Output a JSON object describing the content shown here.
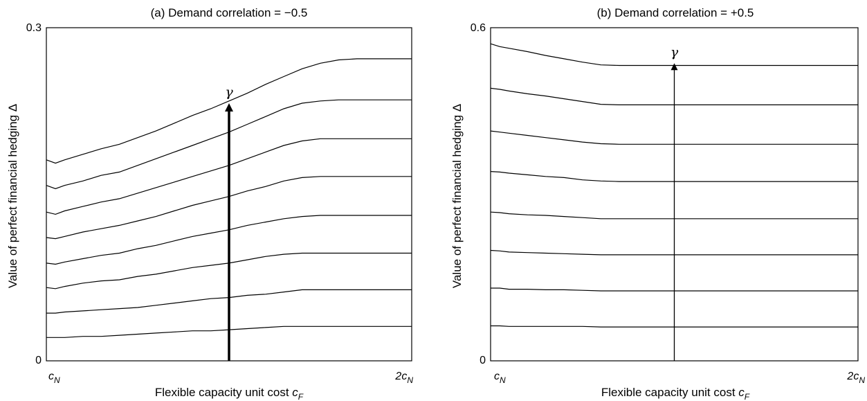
{
  "chart_data": [
    {
      "type": "line",
      "title": "(a) Demand correlation = −0.5",
      "ylabel": "Value of perfect financial hedging Δ",
      "xlabel_text": "Flexible capacity unit cost ",
      "xlabel_var": "c",
      "xlabel_sub": "F",
      "x_tick_left": {
        "text": "c",
        "sub": "N"
      },
      "x_tick_right": {
        "text": "2c",
        "sub": "N"
      },
      "y_tick_top": "0.3",
      "y_tick_bottom": "0",
      "ylim": [
        0,
        0.3
      ],
      "xlim": [
        1,
        2
      ],
      "arrow_label": "γ",
      "arrow": {
        "x": 1.5,
        "y_from": 0,
        "y_to": 0.232,
        "bold": true
      },
      "x": [
        1.0,
        1.025,
        1.05,
        1.1,
        1.15,
        1.2,
        1.25,
        1.3,
        1.35,
        1.4,
        1.45,
        1.5,
        1.55,
        1.6,
        1.65,
        1.7,
        1.75,
        1.8,
        1.85,
        1.9,
        1.95,
        2.0
      ],
      "series": [
        {
          "values": [
            0.021,
            0.021,
            0.021,
            0.022,
            0.022,
            0.023,
            0.024,
            0.025,
            0.026,
            0.027,
            0.027,
            0.028,
            0.029,
            0.03,
            0.031,
            0.031,
            0.031,
            0.031,
            0.031,
            0.031,
            0.031,
            0.031
          ]
        },
        {
          "values": [
            0.043,
            0.043,
            0.044,
            0.045,
            0.046,
            0.047,
            0.048,
            0.05,
            0.052,
            0.054,
            0.056,
            0.057,
            0.059,
            0.06,
            0.062,
            0.064,
            0.064,
            0.064,
            0.064,
            0.064,
            0.064,
            0.064
          ]
        },
        {
          "values": [
            0.066,
            0.065,
            0.067,
            0.07,
            0.072,
            0.073,
            0.076,
            0.078,
            0.081,
            0.084,
            0.086,
            0.088,
            0.091,
            0.094,
            0.096,
            0.097,
            0.097,
            0.097,
            0.097,
            0.097,
            0.097,
            0.097
          ]
        },
        {
          "values": [
            0.088,
            0.087,
            0.089,
            0.092,
            0.095,
            0.097,
            0.101,
            0.104,
            0.108,
            0.112,
            0.115,
            0.118,
            0.122,
            0.125,
            0.128,
            0.13,
            0.131,
            0.131,
            0.131,
            0.131,
            0.131,
            0.131
          ]
        },
        {
          "values": [
            0.111,
            0.11,
            0.112,
            0.116,
            0.119,
            0.122,
            0.126,
            0.13,
            0.135,
            0.14,
            0.144,
            0.148,
            0.153,
            0.157,
            0.162,
            0.165,
            0.166,
            0.166,
            0.166,
            0.166,
            0.166,
            0.166
          ]
        },
        {
          "values": [
            0.134,
            0.132,
            0.135,
            0.139,
            0.143,
            0.146,
            0.151,
            0.156,
            0.161,
            0.166,
            0.171,
            0.176,
            0.182,
            0.188,
            0.194,
            0.198,
            0.2,
            0.2,
            0.2,
            0.2,
            0.2,
            0.2
          ]
        },
        {
          "values": [
            0.158,
            0.155,
            0.158,
            0.162,
            0.167,
            0.17,
            0.176,
            0.182,
            0.188,
            0.194,
            0.2,
            0.206,
            0.213,
            0.22,
            0.227,
            0.232,
            0.234,
            0.235,
            0.235,
            0.235,
            0.235,
            0.235
          ]
        },
        {
          "values": [
            0.181,
            0.178,
            0.181,
            0.186,
            0.191,
            0.195,
            0.201,
            0.207,
            0.214,
            0.221,
            0.227,
            0.234,
            0.241,
            0.249,
            0.256,
            0.263,
            0.268,
            0.271,
            0.272,
            0.272,
            0.272,
            0.272
          ]
        }
      ]
    },
    {
      "type": "line",
      "title": "(b) Demand correlation = +0.5",
      "ylabel": "Value of perfect financial hedging Δ",
      "xlabel_text": "Flexible capacity unit cost ",
      "xlabel_var": "c",
      "xlabel_sub": "F",
      "x_tick_left": {
        "text": "c",
        "sub": "N"
      },
      "x_tick_right": {
        "text": "2c",
        "sub": "N"
      },
      "y_tick_top": "0.6",
      "y_tick_bottom": "0",
      "ylim": [
        0,
        0.6
      ],
      "xlim": [
        1,
        2
      ],
      "arrow_label": "γ",
      "arrow": {
        "x": 1.5,
        "y_from": 0,
        "y_to": 0.536,
        "bold": false
      },
      "x": [
        1.0,
        1.025,
        1.05,
        1.1,
        1.15,
        1.2,
        1.25,
        1.3,
        1.35,
        1.4,
        1.45,
        1.5,
        1.55,
        1.6,
        1.65,
        1.7,
        1.75,
        1.8,
        1.85,
        1.9,
        1.95,
        2.0
      ],
      "series": [
        {
          "values": [
            0.063,
            0.063,
            0.062,
            0.062,
            0.062,
            0.062,
            0.062,
            0.061,
            0.061,
            0.061,
            0.061,
            0.061,
            0.061,
            0.061,
            0.061,
            0.061,
            0.061,
            0.061,
            0.061,
            0.061,
            0.061,
            0.061
          ]
        },
        {
          "values": [
            0.131,
            0.131,
            0.129,
            0.129,
            0.128,
            0.128,
            0.127,
            0.126,
            0.126,
            0.126,
            0.126,
            0.126,
            0.126,
            0.126,
            0.126,
            0.126,
            0.126,
            0.126,
            0.126,
            0.126,
            0.126,
            0.126
          ]
        },
        {
          "values": [
            0.199,
            0.198,
            0.196,
            0.195,
            0.194,
            0.193,
            0.192,
            0.191,
            0.191,
            0.191,
            0.191,
            0.191,
            0.191,
            0.191,
            0.191,
            0.191,
            0.191,
            0.191,
            0.191,
            0.191,
            0.191,
            0.191
          ]
        },
        {
          "values": [
            0.268,
            0.267,
            0.265,
            0.263,
            0.262,
            0.26,
            0.258,
            0.256,
            0.256,
            0.256,
            0.256,
            0.256,
            0.256,
            0.256,
            0.256,
            0.256,
            0.256,
            0.256,
            0.256,
            0.256,
            0.256,
            0.256
          ]
        },
        {
          "values": [
            0.341,
            0.34,
            0.338,
            0.335,
            0.332,
            0.33,
            0.326,
            0.324,
            0.323,
            0.323,
            0.323,
            0.323,
            0.323,
            0.323,
            0.323,
            0.323,
            0.323,
            0.323,
            0.323,
            0.323,
            0.323,
            0.323
          ]
        },
        {
          "values": [
            0.414,
            0.412,
            0.41,
            0.406,
            0.402,
            0.398,
            0.394,
            0.391,
            0.39,
            0.39,
            0.39,
            0.39,
            0.39,
            0.39,
            0.39,
            0.39,
            0.39,
            0.39,
            0.39,
            0.39,
            0.39,
            0.39
          ]
        },
        {
          "values": [
            0.491,
            0.489,
            0.486,
            0.481,
            0.477,
            0.472,
            0.467,
            0.462,
            0.461,
            0.461,
            0.461,
            0.461,
            0.461,
            0.461,
            0.461,
            0.461,
            0.461,
            0.461,
            0.461,
            0.461,
            0.461,
            0.461
          ]
        },
        {
          "values": [
            0.571,
            0.566,
            0.563,
            0.557,
            0.55,
            0.544,
            0.538,
            0.533,
            0.532,
            0.532,
            0.532,
            0.532,
            0.532,
            0.532,
            0.532,
            0.532,
            0.532,
            0.532,
            0.532,
            0.532,
            0.532,
            0.532
          ]
        }
      ]
    }
  ]
}
